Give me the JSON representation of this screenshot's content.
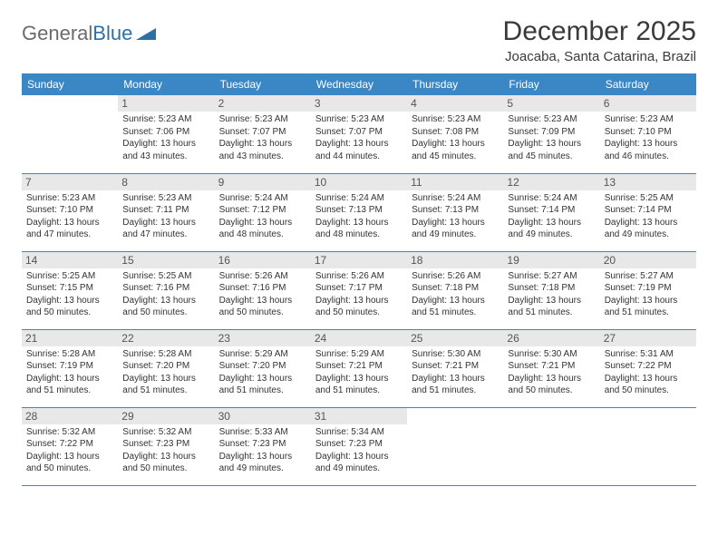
{
  "logo": {
    "text1": "General",
    "text2": "Blue"
  },
  "title": "December 2025",
  "location": "Joacaba, Santa Catarina, Brazil",
  "dayHeaders": [
    "Sunday",
    "Monday",
    "Tuesday",
    "Wednesday",
    "Thursday",
    "Friday",
    "Saturday"
  ],
  "colors": {
    "headerBg": "#3b86c4",
    "headerText": "#ffffff",
    "dayNumBg": "#e8e8e8",
    "border": "#3b86c4",
    "logoGray": "#6b6b6b",
    "logoBlue": "#2f6fa8"
  },
  "weeks": [
    [
      null,
      {
        "n": "1",
        "sr": "Sunrise: 5:23 AM",
        "ss": "Sunset: 7:06 PM",
        "d1": "Daylight: 13 hours",
        "d2": "and 43 minutes."
      },
      {
        "n": "2",
        "sr": "Sunrise: 5:23 AM",
        "ss": "Sunset: 7:07 PM",
        "d1": "Daylight: 13 hours",
        "d2": "and 43 minutes."
      },
      {
        "n": "3",
        "sr": "Sunrise: 5:23 AM",
        "ss": "Sunset: 7:07 PM",
        "d1": "Daylight: 13 hours",
        "d2": "and 44 minutes."
      },
      {
        "n": "4",
        "sr": "Sunrise: 5:23 AM",
        "ss": "Sunset: 7:08 PM",
        "d1": "Daylight: 13 hours",
        "d2": "and 45 minutes."
      },
      {
        "n": "5",
        "sr": "Sunrise: 5:23 AM",
        "ss": "Sunset: 7:09 PM",
        "d1": "Daylight: 13 hours",
        "d2": "and 45 minutes."
      },
      {
        "n": "6",
        "sr": "Sunrise: 5:23 AM",
        "ss": "Sunset: 7:10 PM",
        "d1": "Daylight: 13 hours",
        "d2": "and 46 minutes."
      }
    ],
    [
      {
        "n": "7",
        "sr": "Sunrise: 5:23 AM",
        "ss": "Sunset: 7:10 PM",
        "d1": "Daylight: 13 hours",
        "d2": "and 47 minutes."
      },
      {
        "n": "8",
        "sr": "Sunrise: 5:23 AM",
        "ss": "Sunset: 7:11 PM",
        "d1": "Daylight: 13 hours",
        "d2": "and 47 minutes."
      },
      {
        "n": "9",
        "sr": "Sunrise: 5:24 AM",
        "ss": "Sunset: 7:12 PM",
        "d1": "Daylight: 13 hours",
        "d2": "and 48 minutes."
      },
      {
        "n": "10",
        "sr": "Sunrise: 5:24 AM",
        "ss": "Sunset: 7:13 PM",
        "d1": "Daylight: 13 hours",
        "d2": "and 48 minutes."
      },
      {
        "n": "11",
        "sr": "Sunrise: 5:24 AM",
        "ss": "Sunset: 7:13 PM",
        "d1": "Daylight: 13 hours",
        "d2": "and 49 minutes."
      },
      {
        "n": "12",
        "sr": "Sunrise: 5:24 AM",
        "ss": "Sunset: 7:14 PM",
        "d1": "Daylight: 13 hours",
        "d2": "and 49 minutes."
      },
      {
        "n": "13",
        "sr": "Sunrise: 5:25 AM",
        "ss": "Sunset: 7:14 PM",
        "d1": "Daylight: 13 hours",
        "d2": "and 49 minutes."
      }
    ],
    [
      {
        "n": "14",
        "sr": "Sunrise: 5:25 AM",
        "ss": "Sunset: 7:15 PM",
        "d1": "Daylight: 13 hours",
        "d2": "and 50 minutes."
      },
      {
        "n": "15",
        "sr": "Sunrise: 5:25 AM",
        "ss": "Sunset: 7:16 PM",
        "d1": "Daylight: 13 hours",
        "d2": "and 50 minutes."
      },
      {
        "n": "16",
        "sr": "Sunrise: 5:26 AM",
        "ss": "Sunset: 7:16 PM",
        "d1": "Daylight: 13 hours",
        "d2": "and 50 minutes."
      },
      {
        "n": "17",
        "sr": "Sunrise: 5:26 AM",
        "ss": "Sunset: 7:17 PM",
        "d1": "Daylight: 13 hours",
        "d2": "and 50 minutes."
      },
      {
        "n": "18",
        "sr": "Sunrise: 5:26 AM",
        "ss": "Sunset: 7:18 PM",
        "d1": "Daylight: 13 hours",
        "d2": "and 51 minutes."
      },
      {
        "n": "19",
        "sr": "Sunrise: 5:27 AM",
        "ss": "Sunset: 7:18 PM",
        "d1": "Daylight: 13 hours",
        "d2": "and 51 minutes."
      },
      {
        "n": "20",
        "sr": "Sunrise: 5:27 AM",
        "ss": "Sunset: 7:19 PM",
        "d1": "Daylight: 13 hours",
        "d2": "and 51 minutes."
      }
    ],
    [
      {
        "n": "21",
        "sr": "Sunrise: 5:28 AM",
        "ss": "Sunset: 7:19 PM",
        "d1": "Daylight: 13 hours",
        "d2": "and 51 minutes."
      },
      {
        "n": "22",
        "sr": "Sunrise: 5:28 AM",
        "ss": "Sunset: 7:20 PM",
        "d1": "Daylight: 13 hours",
        "d2": "and 51 minutes."
      },
      {
        "n": "23",
        "sr": "Sunrise: 5:29 AM",
        "ss": "Sunset: 7:20 PM",
        "d1": "Daylight: 13 hours",
        "d2": "and 51 minutes."
      },
      {
        "n": "24",
        "sr": "Sunrise: 5:29 AM",
        "ss": "Sunset: 7:21 PM",
        "d1": "Daylight: 13 hours",
        "d2": "and 51 minutes."
      },
      {
        "n": "25",
        "sr": "Sunrise: 5:30 AM",
        "ss": "Sunset: 7:21 PM",
        "d1": "Daylight: 13 hours",
        "d2": "and 51 minutes."
      },
      {
        "n": "26",
        "sr": "Sunrise: 5:30 AM",
        "ss": "Sunset: 7:21 PM",
        "d1": "Daylight: 13 hours",
        "d2": "and 50 minutes."
      },
      {
        "n": "27",
        "sr": "Sunrise: 5:31 AM",
        "ss": "Sunset: 7:22 PM",
        "d1": "Daylight: 13 hours",
        "d2": "and 50 minutes."
      }
    ],
    [
      {
        "n": "28",
        "sr": "Sunrise: 5:32 AM",
        "ss": "Sunset: 7:22 PM",
        "d1": "Daylight: 13 hours",
        "d2": "and 50 minutes."
      },
      {
        "n": "29",
        "sr": "Sunrise: 5:32 AM",
        "ss": "Sunset: 7:23 PM",
        "d1": "Daylight: 13 hours",
        "d2": "and 50 minutes."
      },
      {
        "n": "30",
        "sr": "Sunrise: 5:33 AM",
        "ss": "Sunset: 7:23 PM",
        "d1": "Daylight: 13 hours",
        "d2": "and 49 minutes."
      },
      {
        "n": "31",
        "sr": "Sunrise: 5:34 AM",
        "ss": "Sunset: 7:23 PM",
        "d1": "Daylight: 13 hours",
        "d2": "and 49 minutes."
      },
      null,
      null,
      null
    ]
  ]
}
